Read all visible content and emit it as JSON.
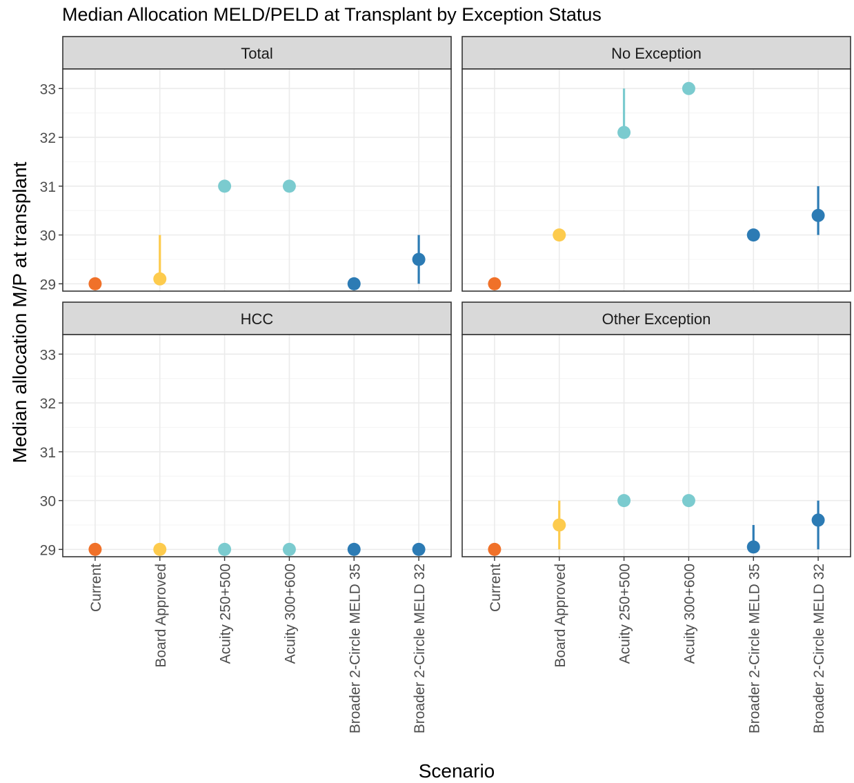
{
  "chart_data": {
    "type": "scatter",
    "title": "Median Allocation MELD/PELD at Transplant by Exception Status",
    "xlabel": "Scenario",
    "ylabel": "Median allocation M/P at transplant",
    "ylim": [
      28.85,
      33.4
    ],
    "y_ticks": [
      29,
      30,
      31,
      32,
      33
    ],
    "categories": [
      "Current",
      "Board Approved",
      "Acuity 250+500",
      "Acuity 300+600",
      "Broader 2-Circle MELD 35",
      "Broader 2-Circle MELD 32"
    ],
    "category_colors": [
      "#F07129",
      "#FDCB4D",
      "#7BCBCF",
      "#7BCBCF",
      "#2C7BB4",
      "#2C7BB4"
    ],
    "grid": true,
    "legend": "none",
    "panels": [
      {
        "name": "Total",
        "median": [
          29,
          29.1,
          31,
          31,
          29,
          29.5
        ],
        "range_low": [
          29,
          29,
          31,
          31,
          29,
          29
        ],
        "range_high": [
          29,
          30,
          31,
          31,
          29,
          30
        ]
      },
      {
        "name": "No Exception",
        "median": [
          29,
          30,
          32.1,
          33,
          30,
          30.4
        ],
        "range_low": [
          29,
          30,
          32,
          33,
          30,
          30
        ],
        "range_high": [
          29,
          30,
          33,
          33,
          30,
          31
        ]
      },
      {
        "name": "HCC",
        "median": [
          29,
          29,
          29,
          29,
          29,
          29
        ],
        "range_low": [
          29,
          29,
          29,
          29,
          29,
          29
        ],
        "range_high": [
          29,
          29,
          29,
          29,
          29,
          29
        ]
      },
      {
        "name": "Other Exception",
        "median": [
          29,
          29.5,
          30,
          30,
          29.05,
          29.6
        ],
        "range_low": [
          29,
          29,
          30,
          30,
          29,
          29
        ],
        "range_high": [
          29,
          30,
          30,
          30,
          29.5,
          30
        ]
      }
    ]
  }
}
